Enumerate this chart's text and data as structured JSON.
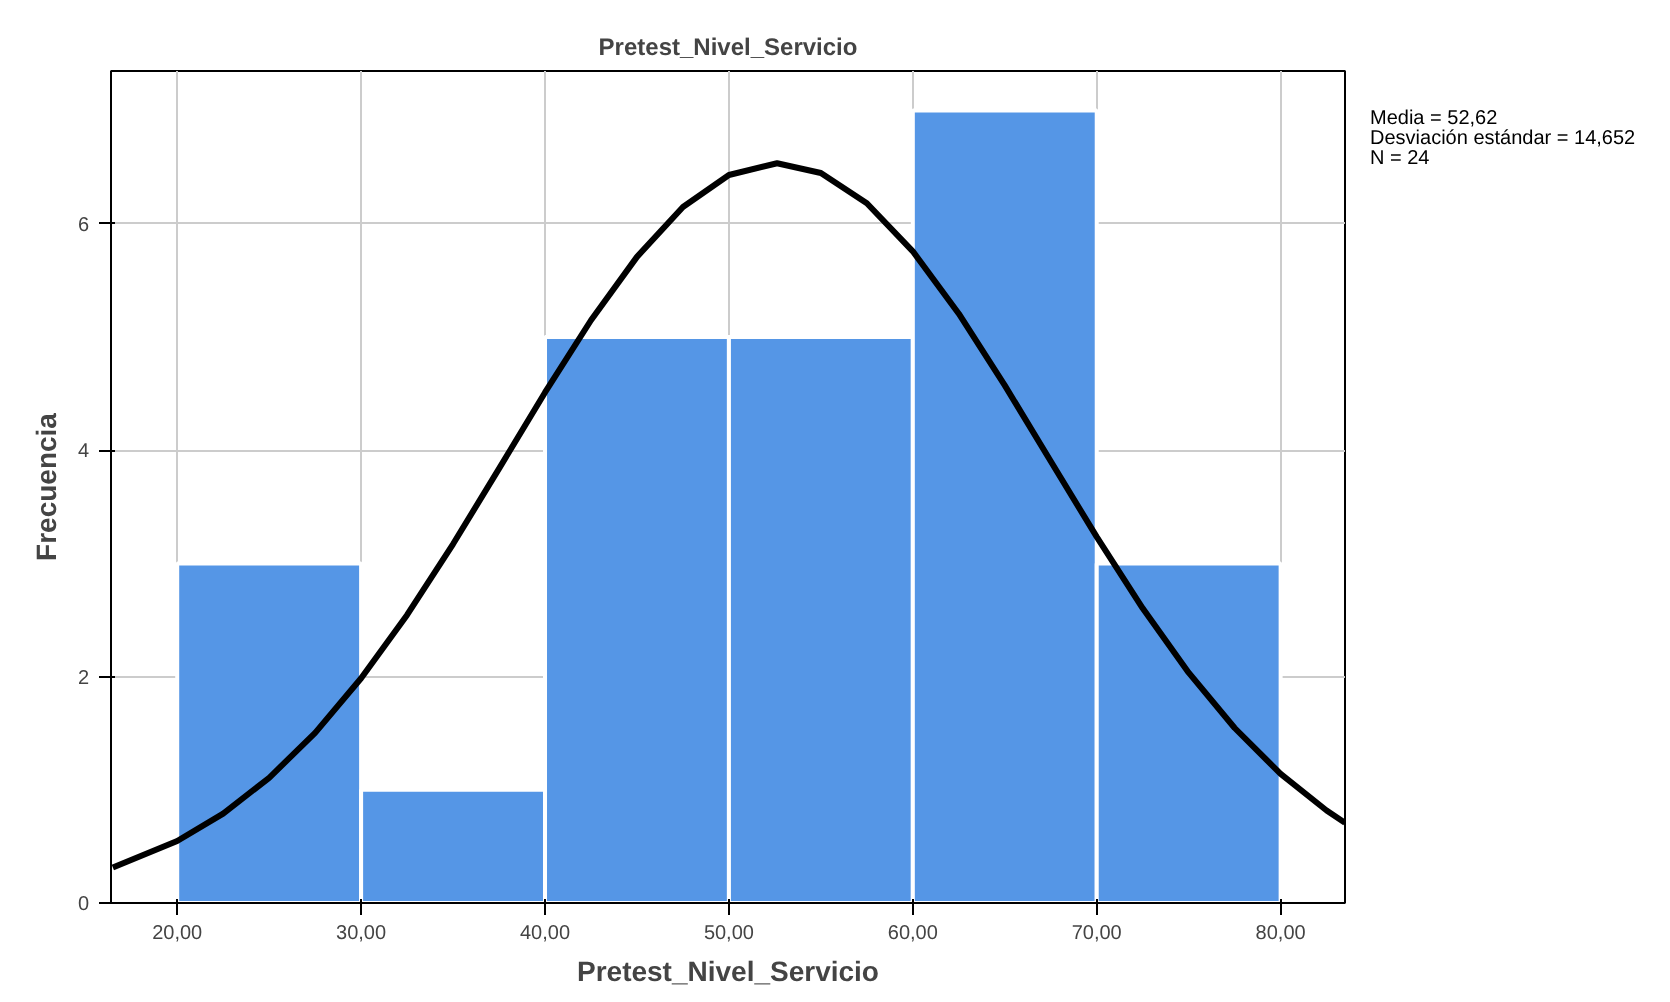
{
  "chart_data": {
    "type": "histogram",
    "title": "Pretest_Nivel_Servicio",
    "xlabel": "Pretest_Nivel_Servicio",
    "ylabel": "Frecuencia",
    "bins": [
      20,
      30,
      40,
      50,
      60,
      70,
      80
    ],
    "values": [
      3,
      1,
      5,
      5,
      7,
      3
    ],
    "color": "#5596e6",
    "series": [
      {
        "type": "line",
        "color": "#000000",
        "x": [
          16.5,
          20,
          22.5,
          25,
          27.5,
          30,
          32.5,
          35,
          37.5,
          40,
          42.5,
          45,
          47.5,
          50,
          52.62,
          55,
          57.5,
          60,
          62.5,
          65,
          67.5,
          70,
          72.5,
          75,
          77.5,
          80,
          82.5,
          83.5
        ],
        "values": [
          0.313,
          0.548,
          0.79,
          1.106,
          1.503,
          1.985,
          2.545,
          3.171,
          3.837,
          4.51,
          5.148,
          5.708,
          6.148,
          6.431,
          6.535,
          6.449,
          6.182,
          5.757,
          5.206,
          4.573,
          3.902,
          3.234,
          2.603,
          2.035,
          1.546,
          1.14,
          0.817,
          0.709
        ]
      }
    ],
    "xlim": [
      16.4,
      83.5
    ],
    "ylim": [
      0,
      7.35
    ],
    "xticks": [
      {
        "value": 20,
        "label": "20,00"
      },
      {
        "value": 30,
        "label": "30,00"
      },
      {
        "value": 40,
        "label": "40,00"
      },
      {
        "value": 50,
        "label": "50,00"
      },
      {
        "value": 60,
        "label": "60,00"
      },
      {
        "value": 70,
        "label": "70,00"
      },
      {
        "value": 80,
        "label": "80,00"
      }
    ],
    "yticks": [
      0,
      2,
      4,
      6
    ],
    "grid": true,
    "annotations": [
      "Media = 52,62",
      "Desviación estándar = 14,652",
      "N = 24"
    ]
  }
}
